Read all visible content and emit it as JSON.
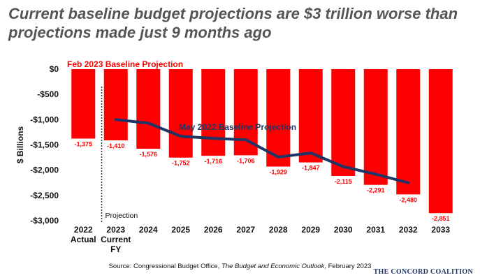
{
  "title": "Current baseline budget projections are $3 trillion worse than projections made just 9 months ago",
  "source": {
    "prefix": "Source: Congressional Budget Office, ",
    "publication": "The Budget and Economic Outlook",
    "suffix": ", February 2023"
  },
  "brand": "THE CONCORD COALITION",
  "chart_data": {
    "type": "bar",
    "ylabel": "$ Billions",
    "ylim": [
      -3000,
      0
    ],
    "yticks": [
      0,
      -500,
      -1000,
      -1500,
      -2000,
      -2500,
      -3000
    ],
    "ytick_labels": [
      "$0",
      "-$500",
      "-$1,000",
      "-$1,500",
      "-$2,000",
      "-$2,500",
      "-$3,000"
    ],
    "categories": [
      "2022",
      "2023",
      "2024",
      "2025",
      "2026",
      "2027",
      "2028",
      "2029",
      "2030",
      "2031",
      "2032",
      "2033"
    ],
    "category_sublabels": [
      "Actual",
      "Current",
      "",
      "",
      "",
      "",
      "",
      "",
      "",
      "",
      "",
      ""
    ],
    "category_sublabels2": [
      "",
      "FY",
      "",
      "",
      "",
      "",
      "",
      "",
      "",
      "",
      "",
      ""
    ],
    "bar_color": "#ff0000",
    "line_color": "#1f3566",
    "series": [
      {
        "name": "Feb 2023 Baseline Projection",
        "type": "bar",
        "values": [
          -1375,
          -1410,
          -1576,
          -1752,
          -1716,
          -1706,
          -1929,
          -1847,
          -2115,
          -2291,
          -2480,
          -2851
        ],
        "labels": [
          "-1,375",
          "-1,410",
          "-1,576",
          "-1,752",
          "-1,716",
          "-1,706",
          "-1,929",
          "-1,847",
          "-2,115",
          "-2,291",
          "-2,480",
          "-2,851"
        ]
      },
      {
        "name": "May 2022 Baseline Projection",
        "type": "line",
        "values": [
          null,
          -1000,
          -1070,
          -1330,
          -1370,
          -1400,
          -1740,
          -1660,
          -1930,
          -2080,
          -2250,
          null
        ]
      }
    ],
    "annotations": [
      "Projection"
    ],
    "grid": false
  }
}
